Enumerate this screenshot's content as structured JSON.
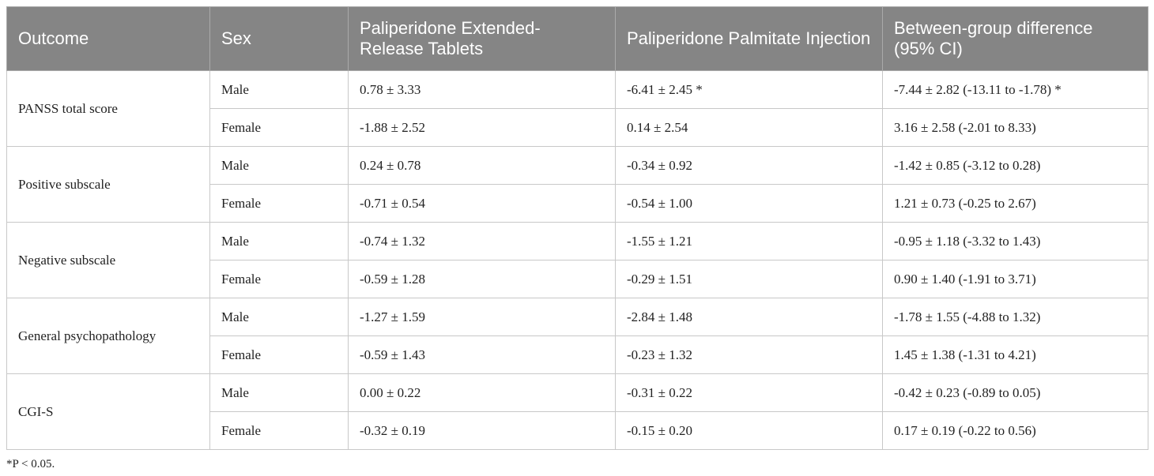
{
  "table": {
    "header": [
      "Outcome",
      "Sex",
      "Paliperidone Extended-Release Tablets",
      "Paliperidone Palmitate Injection",
      "Between-group difference (95% CI)"
    ],
    "groups": [
      {
        "label": "PANSS total score",
        "rows": [
          [
            "Male",
            "0.78 ± 3.33",
            "-6.41 ± 2.45 *",
            "-7.44 ± 2.82 (-13.11 to -1.78) *"
          ],
          [
            "Female",
            "-1.88 ± 2.52",
            "0.14 ± 2.54",
            "3.16 ± 2.58 (-2.01 to 8.33)"
          ]
        ]
      },
      {
        "label": "Positive subscale",
        "rows": [
          [
            "Male",
            "0.24 ± 0.78",
            "-0.34 ± 0.92",
            "-1.42 ± 0.85 (-3.12 to 0.28)"
          ],
          [
            "Female",
            "-0.71 ± 0.54",
            "-0.54 ± 1.00",
            "1.21 ± 0.73 (-0.25 to 2.67)"
          ]
        ]
      },
      {
        "label": "Negative subscale",
        "rows": [
          [
            "Male",
            "-0.74 ± 1.32",
            "-1.55 ± 1.21",
            "-0.95 ± 1.18 (-3.32 to 1.43)"
          ],
          [
            "Female",
            "-0.59 ± 1.28",
            "-0.29 ± 1.51",
            "0.90 ± 1.40 (-1.91 to 3.71)"
          ]
        ]
      },
      {
        "label": "General psychopathology",
        "rows": [
          [
            "Male",
            "-1.27 ± 1.59",
            "-2.84 ± 1.48",
            "-1.78 ± 1.55 (-4.88 to 1.32)"
          ],
          [
            "Female",
            "-0.59 ± 1.43",
            "-0.23 ± 1.32",
            "1.45 ± 1.38 (-1.31 to 4.21)"
          ]
        ]
      },
      {
        "label": "CGI-S",
        "rows": [
          [
            "Male",
            "0.00 ± 0.22",
            "-0.31 ± 0.22",
            "-0.42 ± 0.23 (-0.89 to 0.05)"
          ],
          [
            "Female",
            "-0.32 ± 0.19",
            "-0.15 ± 0.20",
            "0.17 ± 0.19 (-0.22 to 0.56)"
          ]
        ]
      }
    ],
    "footnote": "*P < 0.05."
  }
}
